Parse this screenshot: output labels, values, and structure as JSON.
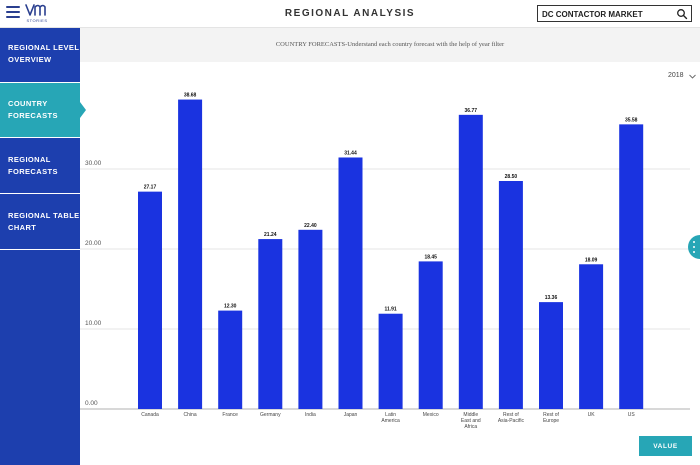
{
  "header": {
    "logo_text": "STORIES",
    "title": "REGIONAL ANALYSIS",
    "search_value": "DC CONTACTOR MARKET"
  },
  "sidebar": {
    "items": [
      {
        "line1": "REGIONAL LEVEL",
        "line2": "OVERVIEW",
        "active": false
      },
      {
        "line1": "COUNTRY",
        "line2": "FORECASTS",
        "active": true
      },
      {
        "line1": "REGIONAL",
        "line2": "FORECASTS",
        "active": false
      },
      {
        "line1": "REGIONAL TABLE",
        "line2": "CHART",
        "active": false
      }
    ]
  },
  "subtitle": "COUNTRY FORECASTS-Understand each country forecast with the help of year filter",
  "year_filter": {
    "selected": "2018"
  },
  "value_button_label": "VALUE",
  "colors": {
    "sidebar": "#1d3fae",
    "accent": "#27a6b6",
    "bar": "#1a33e0"
  },
  "icons": [
    "hamburger-menu-icon",
    "logo-icon",
    "search-icon",
    "chevron-down-icon",
    "more-vertical-icon"
  ],
  "chart_data": {
    "type": "bar",
    "categories": [
      [
        "Canada"
      ],
      [
        "China"
      ],
      [
        "France"
      ],
      [
        "Germany"
      ],
      [
        "India"
      ],
      [
        "Japan"
      ],
      [
        "Latin",
        "America"
      ],
      [
        "Mexico"
      ],
      [
        "Middle",
        "East and",
        "Africa"
      ],
      [
        "Rest of",
        "Asia-Pacific"
      ],
      [
        "Rest of",
        "Europe"
      ],
      [
        "UK"
      ],
      [
        "US"
      ]
    ],
    "values": [
      27.17,
      38.68,
      12.3,
      21.24,
      22.4,
      31.44,
      11.91,
      18.45,
      36.77,
      28.5,
      13.36,
      18.09,
      35.58
    ],
    "value_labels": [
      "27.17",
      "38.68",
      "12.30",
      "21.24",
      "22.40",
      "31.44",
      "11.91",
      "18.45",
      "36.77",
      "28.50",
      "13.36",
      "18.09",
      "35.58"
    ],
    "y_ticks": [
      0,
      10,
      20,
      30
    ],
    "y_tick_labels": [
      "0.00",
      "10.00",
      "20.00",
      "30.00"
    ],
    "ylim": [
      0,
      40
    ],
    "grid": true,
    "title": "",
    "xlabel": "",
    "ylabel": ""
  }
}
